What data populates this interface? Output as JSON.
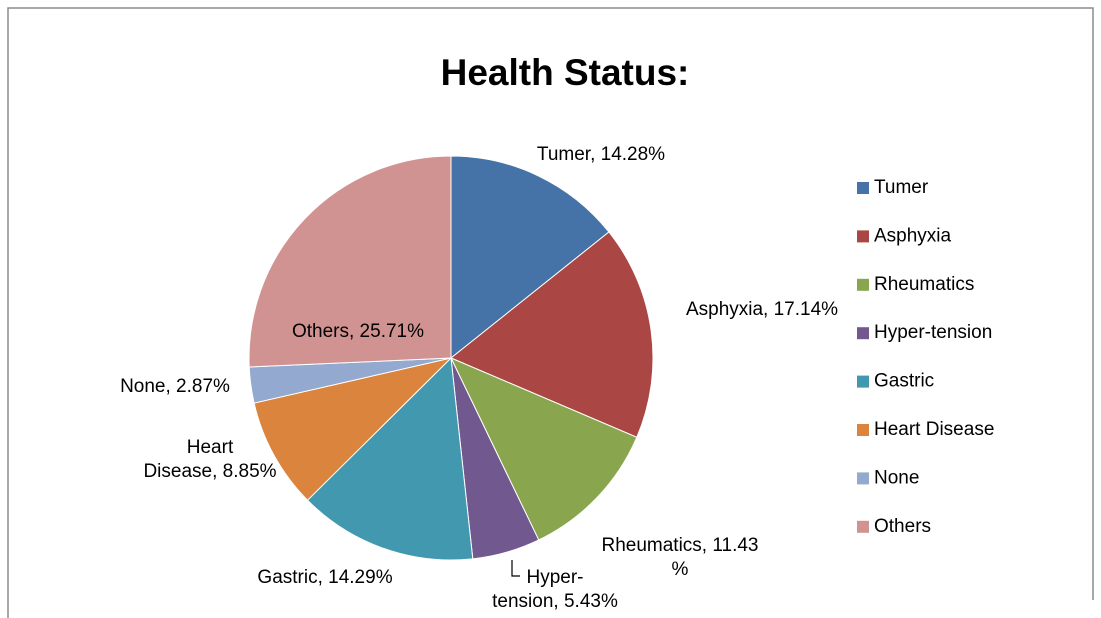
{
  "chart_data": {
    "type": "pie",
    "title": "Health Status:",
    "categories": [
      "Tumer",
      "Asphyxia",
      "Rheumatics",
      "Hyper-tension",
      "Gastric",
      "Heart Disease",
      "None",
      "Others"
    ],
    "values": [
      14.28,
      17.14,
      11.43,
      5.43,
      14.29,
      8.85,
      2.87,
      25.71
    ],
    "value_labels": [
      "Tumer, 14.28%",
      "Asphyxia, 17.14%",
      "Rheumatics, 11.43\n%",
      "Hyper-\ntension, 5.43%",
      "Gastric, 14.29%",
      "Heart\nDisease, 8.85%",
      "None, 2.87%",
      "Others, 25.71%"
    ],
    "colors": [
      "#4572a7",
      "#aa4643",
      "#89a54e",
      "#71588f",
      "#4198af",
      "#db843d",
      "#93a9cf",
      "#d19392"
    ],
    "legend": "right"
  }
}
